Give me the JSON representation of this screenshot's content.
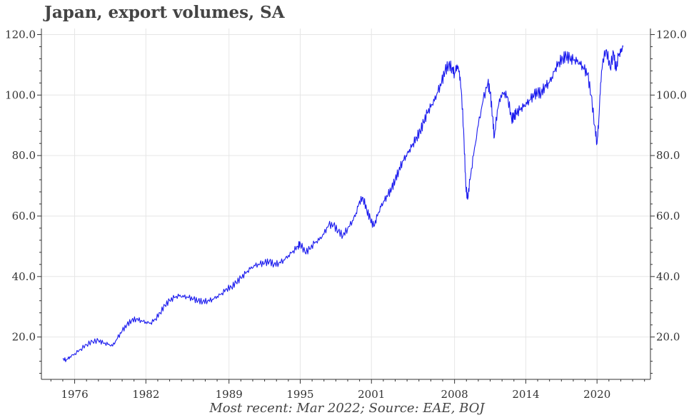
{
  "chart_data": {
    "type": "line",
    "title": "Japan, export volumes, SA",
    "caption": "Most recent: Mar 2022; Source: EAE, BOJ",
    "xlabel": "",
    "ylabel": "",
    "xlim": [
      1973.2,
      2024.5
    ],
    "ylim": [
      6,
      122
    ],
    "x_ticks": [
      1976,
      1982,
      1989,
      1995,
      2001,
      2008,
      2014,
      2020
    ],
    "x_tick_labels": [
      "1976",
      "1982",
      "1989",
      "1995",
      "2001",
      "2008",
      "2014",
      "2020"
    ],
    "y_ticks": [
      20,
      40,
      60,
      80,
      100,
      120
    ],
    "y_tick_labels": [
      "20.0",
      "40.0",
      "60.0",
      "80.0",
      "100.0",
      "120.0"
    ],
    "grid": true,
    "line_color": "#1a1aee",
    "series": [
      {
        "x": [
          1975.0,
          1975.3,
          1975.6,
          1976.0,
          1976.5,
          1977.0,
          1977.5,
          1978.0,
          1978.4,
          1978.8,
          1979.2,
          1979.6,
          1980.0,
          1980.4,
          1980.8,
          1981.2,
          1981.6,
          1982.0,
          1982.4,
          1982.8,
          1983.2,
          1983.6,
          1984.0,
          1984.4,
          1984.8,
          1985.2,
          1985.6,
          1986.0,
          1986.4,
          1986.8,
          1987.2,
          1987.6,
          1988.0,
          1988.4,
          1988.8,
          1989.2,
          1989.6,
          1990.0,
          1990.4,
          1990.8,
          1991.2,
          1991.6,
          1992.0,
          1992.4,
          1992.8,
          1993.2,
          1993.6,
          1994.0,
          1994.4,
          1994.8,
          1995.0,
          1995.4,
          1995.8,
          1996.2,
          1996.6,
          1997.0,
          1997.4,
          1997.8,
          1998.2,
          1998.6,
          1999.0,
          1999.4,
          1999.7,
          2000.0,
          2000.3,
          2000.6,
          2000.9,
          2001.2,
          2001.5,
          2001.8,
          2002.1,
          2002.4,
          2002.7,
          2003.0,
          2003.3,
          2003.6,
          2003.9,
          2004.2,
          2004.5,
          2004.8,
          2005.1,
          2005.4,
          2005.7,
          2006.0,
          2006.3,
          2006.6,
          2006.9,
          2007.2,
          2007.5,
          2007.8,
          2008.0,
          2008.2,
          2008.4,
          2008.6,
          2008.8,
          2008.95,
          2009.1,
          2009.3,
          2009.6,
          2010.0,
          2010.4,
          2010.8,
          2011.0,
          2011.2,
          2011.35,
          2011.6,
          2011.9,
          2012.2,
          2012.5,
          2012.8,
          2013.0,
          2013.2,
          2013.5,
          2013.8,
          2014.1,
          2014.4,
          2014.7,
          2015.0,
          2015.3,
          2015.6,
          2015.9,
          2016.2,
          2016.5,
          2016.8,
          2017.1,
          2017.4,
          2017.7,
          2018.0,
          2018.3,
          2018.6,
          2018.9,
          2019.2,
          2019.5,
          2019.8,
          2020.0,
          2020.15,
          2020.3,
          2020.5,
          2020.8,
          2021.1,
          2021.4,
          2021.6,
          2021.8,
          2022.0,
          2022.2
        ],
        "y": [
          12.7,
          12.5,
          13.5,
          14.5,
          16.0,
          17.5,
          18.5,
          18.8,
          18.0,
          17.5,
          17.0,
          19.5,
          22.0,
          24.0,
          25.5,
          26.0,
          25.5,
          25.0,
          24.7,
          26.0,
          28.0,
          30.5,
          32.0,
          33.0,
          33.5,
          33.2,
          33.0,
          32.5,
          32.0,
          31.7,
          32.0,
          32.5,
          33.5,
          34.5,
          36.0,
          36.5,
          38.0,
          39.5,
          41.0,
          42.5,
          43.5,
          44.0,
          44.5,
          45.0,
          44.0,
          44.5,
          45.5,
          47.0,
          48.5,
          50.0,
          51.0,
          48.0,
          49.0,
          51.0,
          52.0,
          54.0,
          57.0,
          57.0,
          55.0,
          53.5,
          56.0,
          58.5,
          61.0,
          65.0,
          66.0,
          62.0,
          59.0,
          56.5,
          60.0,
          63.0,
          65.0,
          67.0,
          69.0,
          72.0,
          75.0,
          78.0,
          80.0,
          82.0,
          84.0,
          86.0,
          88.0,
          91.0,
          94.0,
          96.0,
          98.0,
          101.0,
          104.0,
          108.0,
          110.0,
          109.0,
          107.0,
          110.0,
          108.0,
          100.0,
          85.0,
          70.0,
          65.5,
          72.0,
          80.0,
          90.0,
          98.0,
          104.0,
          101.0,
          93.0,
          86.0,
          95.0,
          100.0,
          101.0,
          99.0,
          92.0,
          93.0,
          94.0,
          95.0,
          96.0,
          97.0,
          98.5,
          100.0,
          101.0,
          100.5,
          103.0,
          104.0,
          106.0,
          109.0,
          111.0,
          112.0,
          113.0,
          112.0,
          111.5,
          111.0,
          110.0,
          108.5,
          107.0,
          100.0,
          90.0,
          84.0,
          92.0,
          104.0,
          112.0,
          115.0,
          109.0,
          114.0,
          108.0,
          113.0,
          114.0,
          116.0
        ]
      }
    ]
  }
}
